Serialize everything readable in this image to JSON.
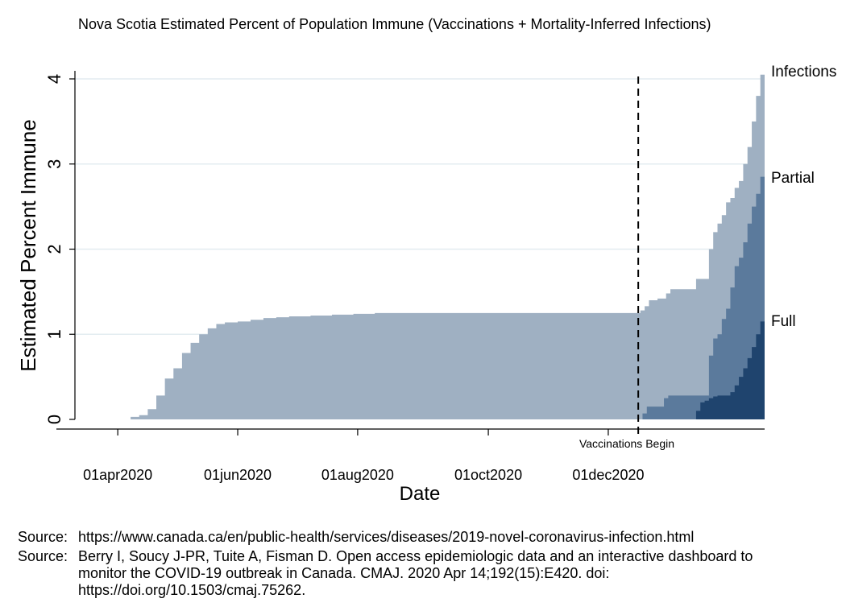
{
  "title": "Nova Scotia Estimated Percent of Population Immune (Vaccinations + Mortality-Inferred Infections)",
  "chart_data": {
    "type": "area",
    "title": "Nova Scotia Estimated Percent of Population Immune (Vaccinations + Mortality-Inferred Infections)",
    "xlabel": "Date",
    "ylabel": "Estimated Percent Immune",
    "ylim": [
      0,
      4.1
    ],
    "yticks": [
      0,
      1,
      2,
      3,
      4
    ],
    "ytick_labels": [
      "0",
      "1",
      "2",
      "3",
      "4"
    ],
    "xlim_days": [
      0,
      322
    ],
    "xticks_days": [
      20,
      76,
      132,
      193,
      249
    ],
    "xtick_labels": [
      "01apr2020",
      "01jun2020",
      "01aug2020",
      "01oct2020",
      "01dec2020"
    ],
    "grid": true,
    "vline": {
      "day": 263,
      "label": "Vaccinations Begin"
    },
    "series_labels": [
      "Infections",
      "Partial",
      "Full"
    ],
    "series": [
      {
        "name": "Infections",
        "color": "#9fb0c2",
        "points": [
          [
            0,
            0
          ],
          [
            20,
            0
          ],
          [
            26,
            0.03
          ],
          [
            30,
            0.05
          ],
          [
            34,
            0.12
          ],
          [
            38,
            0.28
          ],
          [
            42,
            0.48
          ],
          [
            46,
            0.6
          ],
          [
            50,
            0.78
          ],
          [
            54,
            0.9
          ],
          [
            58,
            1.0
          ],
          [
            62,
            1.07
          ],
          [
            66,
            1.12
          ],
          [
            70,
            1.14
          ],
          [
            76,
            1.15
          ],
          [
            82,
            1.17
          ],
          [
            88,
            1.19
          ],
          [
            94,
            1.2
          ],
          [
            100,
            1.21
          ],
          [
            110,
            1.22
          ],
          [
            120,
            1.23
          ],
          [
            130,
            1.24
          ],
          [
            140,
            1.25
          ],
          [
            150,
            1.25
          ],
          [
            160,
            1.25
          ],
          [
            170,
            1.25
          ],
          [
            180,
            1.25
          ],
          [
            190,
            1.25
          ],
          [
            200,
            1.25
          ],
          [
            210,
            1.25
          ],
          [
            220,
            1.25
          ],
          [
            230,
            1.25
          ],
          [
            240,
            1.25
          ],
          [
            250,
            1.25
          ],
          [
            256,
            1.25
          ],
          [
            262,
            1.25
          ],
          [
            264,
            1.28
          ],
          [
            266,
            1.33
          ],
          [
            268,
            1.4
          ],
          [
            272,
            1.42
          ],
          [
            276,
            1.48
          ],
          [
            278,
            1.53
          ],
          [
            284,
            1.53
          ],
          [
            290,
            1.65
          ],
          [
            294,
            1.65
          ],
          [
            296,
            2.0
          ],
          [
            298,
            2.2
          ],
          [
            300,
            2.3
          ],
          [
            302,
            2.4
          ],
          [
            304,
            2.55
          ],
          [
            306,
            2.6
          ],
          [
            308,
            2.72
          ],
          [
            310,
            2.8
          ],
          [
            312,
            3.0
          ],
          [
            314,
            3.2
          ],
          [
            316,
            3.5
          ],
          [
            318,
            3.8
          ],
          [
            320,
            4.05
          ],
          [
            322,
            4.1
          ]
        ]
      },
      {
        "name": "Partial",
        "color": "#5b7a9c",
        "points": [
          [
            263,
            0
          ],
          [
            265,
            0.07
          ],
          [
            267,
            0.15
          ],
          [
            269,
            0.15
          ],
          [
            273,
            0.15
          ],
          [
            275,
            0.25
          ],
          [
            277,
            0.28
          ],
          [
            283,
            0.28
          ],
          [
            287,
            0.28
          ],
          [
            289,
            0.28
          ],
          [
            291,
            0.28
          ],
          [
            294,
            0.28
          ],
          [
            296,
            0.75
          ],
          [
            298,
            0.95
          ],
          [
            300,
            1.0
          ],
          [
            302,
            1.18
          ],
          [
            304,
            1.3
          ],
          [
            306,
            1.55
          ],
          [
            308,
            1.8
          ],
          [
            310,
            1.9
          ],
          [
            312,
            2.08
          ],
          [
            314,
            2.3
          ],
          [
            316,
            2.5
          ],
          [
            318,
            2.65
          ],
          [
            320,
            2.85
          ],
          [
            322,
            2.87
          ]
        ]
      },
      {
        "name": "Full",
        "color": "#1f446e",
        "points": [
          [
            288,
            0
          ],
          [
            290,
            0.1
          ],
          [
            292,
            0.2
          ],
          [
            294,
            0.22
          ],
          [
            296,
            0.25
          ],
          [
            298,
            0.27
          ],
          [
            300,
            0.28
          ],
          [
            302,
            0.28
          ],
          [
            304,
            0.28
          ],
          [
            306,
            0.32
          ],
          [
            308,
            0.4
          ],
          [
            310,
            0.5
          ],
          [
            312,
            0.6
          ],
          [
            314,
            0.72
          ],
          [
            316,
            0.85
          ],
          [
            318,
            1.0
          ],
          [
            320,
            1.15
          ],
          [
            322,
            1.18
          ]
        ]
      }
    ]
  },
  "sources": [
    {
      "label": "Source:",
      "text": "https://www.canada.ca/en/public-health/services/diseases/2019-novel-coronavirus-infection.html"
    },
    {
      "label": "Source:",
      "text": "Berry I, Soucy J-PR, Tuite A, Fisman D. Open access epidemiologic data and an interactive dashboard to monitor the COVID-19 outbreak in Canada. CMAJ. 2020 Apr 14;192(15):E420. doi: https://doi.org/10.1503/cmaj.75262."
    }
  ]
}
